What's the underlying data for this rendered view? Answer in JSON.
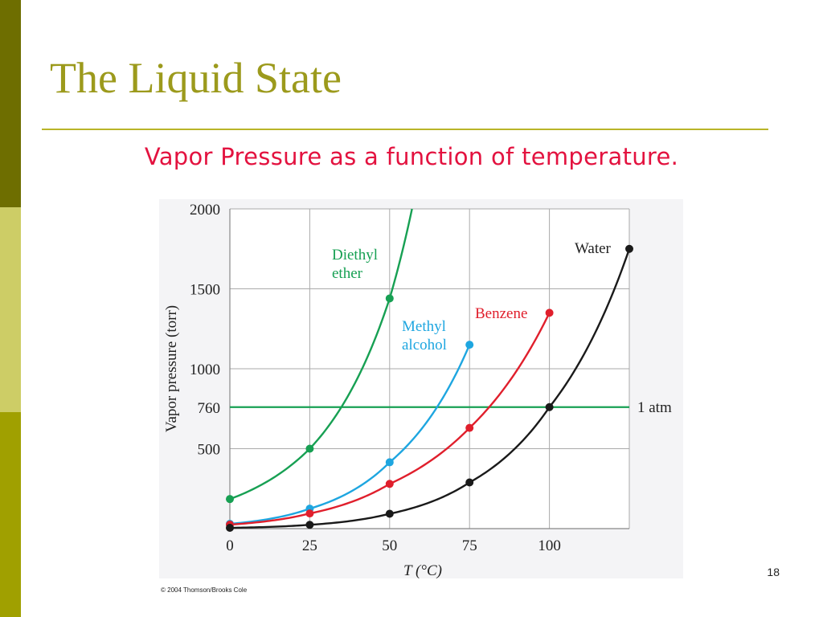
{
  "slide": {
    "title": "The Liquid State",
    "subtitle": "Vapor Pressure as a function of temperature.",
    "page_number": "18",
    "copyright": "© 2004 Thomson/Brooks Cole",
    "colors": {
      "sidebar_dark": "#6e6e00",
      "sidebar_light": "#cdcd66",
      "sidebar_mid": "#a0a000",
      "title": "#9c9a1c",
      "subtitle": "#e3123f"
    }
  },
  "chart_data": {
    "type": "line",
    "title": "",
    "xlabel": "T (°C)",
    "ylabel": "Vapor pressure (torr)",
    "xlim": [
      0,
      125
    ],
    "ylim": [
      0,
      2000
    ],
    "x_ticks": [
      0,
      25,
      50,
      75,
      100
    ],
    "y_ticks": [
      500,
      760,
      1000,
      1500,
      2000
    ],
    "grid": true,
    "series": [
      {
        "name": "Diethyl ether",
        "label_lines": [
          "Diethyl",
          "ether"
        ],
        "color": "#17a053",
        "points": [
          [
            0,
            185
          ],
          [
            25,
            500
          ],
          [
            50,
            1440
          ]
        ],
        "curve_end": [
          57,
          2000
        ]
      },
      {
        "name": "Methyl alcohol",
        "label_lines": [
          "Methyl",
          "alcohol"
        ],
        "color": "#1ea6e0",
        "points": [
          [
            0,
            30
          ],
          [
            25,
            125
          ],
          [
            50,
            415
          ],
          [
            75,
            1150
          ]
        ]
      },
      {
        "name": "Benzene",
        "label_lines": [
          "Benzene"
        ],
        "color": "#e01f2c",
        "points": [
          [
            0,
            25
          ],
          [
            25,
            95
          ],
          [
            50,
            280
          ],
          [
            75,
            630
          ],
          [
            100,
            1350
          ]
        ]
      },
      {
        "name": "Water",
        "label_lines": [
          "Water"
        ],
        "color": "#1a1a1a",
        "points": [
          [
            0,
            5
          ],
          [
            25,
            24
          ],
          [
            50,
            93
          ],
          [
            75,
            289
          ],
          [
            100,
            760
          ],
          [
            125,
            1750
          ]
        ]
      }
    ],
    "reference_lines": [
      {
        "label": "1 atm",
        "y": 760,
        "color": "#17a053"
      }
    ]
  }
}
